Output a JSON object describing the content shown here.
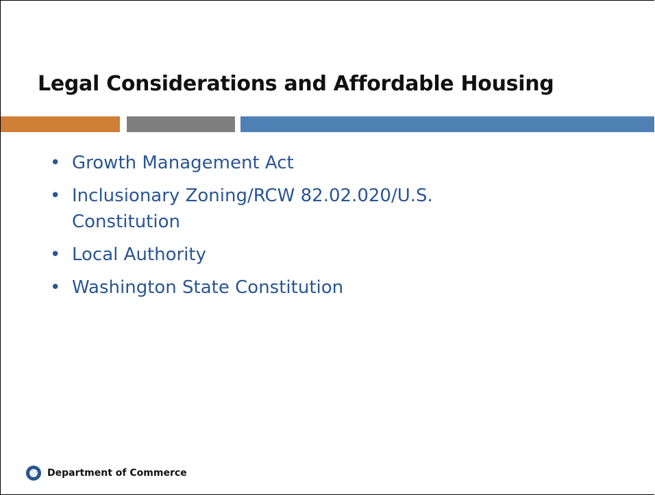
{
  "title": "Legal Considerations and Affordable Housing",
  "bullets": [
    "Growth Management Act",
    "Inclusionary Zoning/RCW 82.02.020/U.S. Constitution",
    "Local Authority",
    "Washington State Constitution"
  ],
  "footer": "Department of Commerce"
}
